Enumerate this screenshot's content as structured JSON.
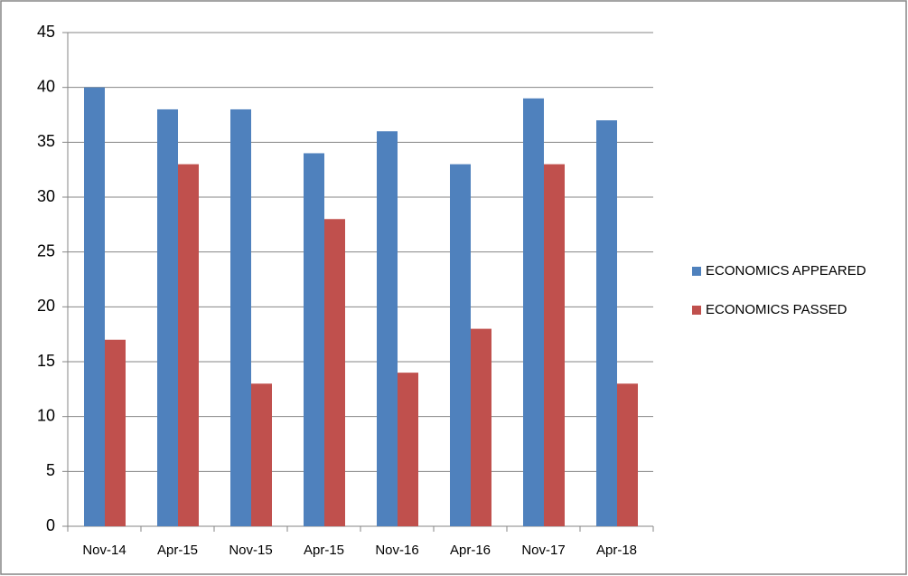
{
  "chart_data": {
    "type": "bar",
    "categories": [
      "Nov-14",
      "Apr-15",
      "Nov-15",
      "Apr-15",
      "Nov-16",
      "Apr-16",
      "Nov-17",
      "Apr-18"
    ],
    "series": [
      {
        "name": "ECONOMICS APPEARED",
        "color": "#4f81bd",
        "values": [
          40,
          38,
          38,
          34,
          36,
          33,
          39,
          37
        ]
      },
      {
        "name": "ECONOMICS PASSED",
        "color": "#c0504d",
        "values": [
          17,
          33,
          13,
          28,
          14,
          18,
          33,
          13
        ]
      }
    ],
    "ylim": [
      0,
      45
    ],
    "yticks": [
      0,
      5,
      10,
      15,
      20,
      25,
      30,
      35,
      40,
      45
    ],
    "grid": true,
    "legend": "right"
  }
}
